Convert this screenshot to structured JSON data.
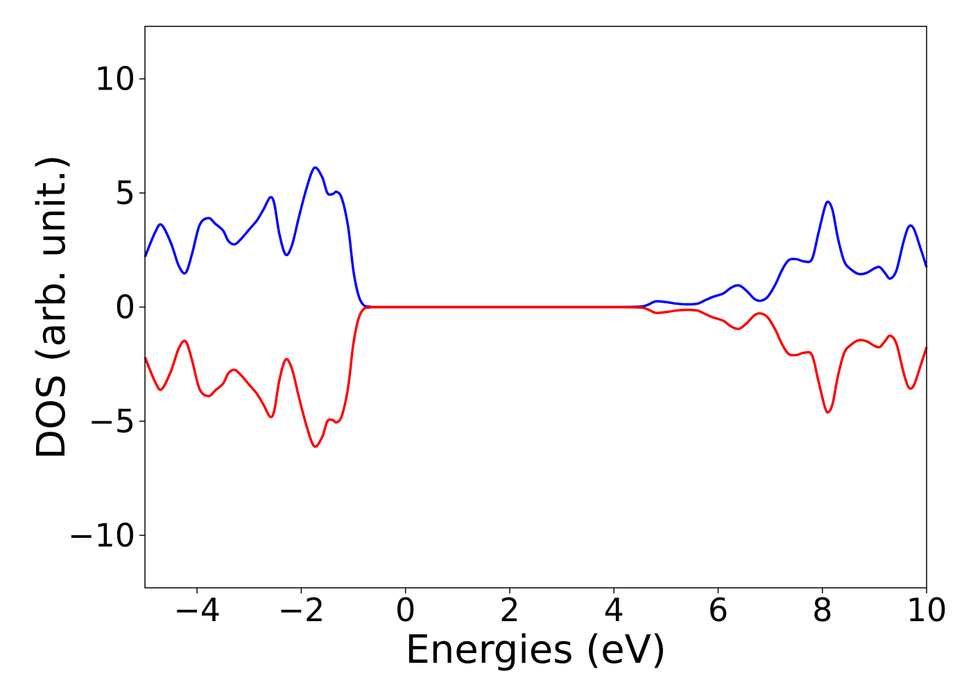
{
  "chart_data": {
    "type": "line",
    "title": "",
    "xlabel": "Energies (eV)",
    "ylabel": "DOS (arb. unit.)",
    "xlim": [
      -5,
      10
    ],
    "ylim": [
      -12.3,
      12.3
    ],
    "xticks": [
      -4,
      -2,
      0,
      2,
      4,
      6,
      8,
      10
    ],
    "yticks": [
      -10,
      -5,
      0,
      5,
      10
    ],
    "xtick_labels": [
      "−4",
      "−2",
      "0",
      "2",
      "4",
      "6",
      "8",
      "10"
    ],
    "ytick_labels": [
      "−10",
      "−5",
      "0",
      "5",
      "10"
    ],
    "grid": false,
    "legend": "none",
    "series": [
      {
        "color": "#0000ff",
        "x": [
          -5.0,
          -4.8,
          -4.68,
          -4.5,
          -4.35,
          -4.22,
          -4.1,
          -3.95,
          -3.78,
          -3.65,
          -3.5,
          -3.4,
          -3.28,
          -3.15,
          -3.0,
          -2.85,
          -2.72,
          -2.6,
          -2.52,
          -2.42,
          -2.3,
          -2.18,
          -2.05,
          -1.9,
          -1.75,
          -1.6,
          -1.5,
          -1.4,
          -1.32,
          -1.22,
          -1.1,
          -1.0,
          -0.9,
          -0.8,
          -0.7,
          -0.6,
          -0.5,
          0.0,
          2.0,
          4.0,
          4.5,
          4.65,
          4.8,
          5.0,
          5.2,
          5.4,
          5.6,
          5.75,
          5.9,
          6.1,
          6.25,
          6.4,
          6.55,
          6.7,
          6.82,
          6.95,
          7.1,
          7.22,
          7.35,
          7.5,
          7.65,
          7.8,
          7.92,
          8.05,
          8.12,
          8.2,
          8.3,
          8.42,
          8.55,
          8.7,
          8.85,
          9.0,
          9.1,
          9.2,
          9.3,
          9.42,
          9.55,
          9.65,
          9.75,
          9.88,
          10.0
        ],
        "y": [
          2.2,
          3.3,
          3.6,
          2.8,
          1.8,
          1.5,
          2.3,
          3.6,
          3.9,
          3.65,
          3.35,
          2.9,
          2.75,
          3.0,
          3.4,
          3.8,
          4.3,
          4.8,
          4.55,
          3.2,
          2.3,
          2.7,
          3.9,
          5.2,
          6.1,
          5.7,
          5.0,
          4.95,
          5.05,
          4.75,
          3.5,
          1.6,
          0.5,
          0.08,
          0.02,
          0.0,
          0.0,
          0.0,
          0.0,
          0.0,
          0.02,
          0.1,
          0.25,
          0.22,
          0.15,
          0.12,
          0.15,
          0.3,
          0.45,
          0.6,
          0.85,
          0.95,
          0.7,
          0.35,
          0.28,
          0.45,
          1.0,
          1.6,
          2.05,
          2.1,
          2.0,
          2.1,
          3.2,
          4.4,
          4.6,
          4.2,
          3.0,
          2.0,
          1.65,
          1.45,
          1.5,
          1.7,
          1.75,
          1.5,
          1.25,
          1.6,
          2.8,
          3.5,
          3.45,
          2.6,
          1.75
        ]
      },
      {
        "color": "#ff0000",
        "x": [
          -5.0,
          -4.8,
          -4.68,
          -4.5,
          -4.35,
          -4.22,
          -4.1,
          -3.95,
          -3.78,
          -3.65,
          -3.5,
          -3.4,
          -3.28,
          -3.15,
          -3.0,
          -2.85,
          -2.72,
          -2.6,
          -2.52,
          -2.42,
          -2.3,
          -2.18,
          -2.05,
          -1.9,
          -1.75,
          -1.6,
          -1.5,
          -1.4,
          -1.32,
          -1.22,
          -1.1,
          -1.0,
          -0.9,
          -0.8,
          -0.7,
          -0.6,
          -0.5,
          0.0,
          2.0,
          4.0,
          4.5,
          4.65,
          4.8,
          5.0,
          5.2,
          5.4,
          5.6,
          5.75,
          5.9,
          6.1,
          6.25,
          6.4,
          6.55,
          6.7,
          6.82,
          6.95,
          7.1,
          7.22,
          7.35,
          7.5,
          7.65,
          7.8,
          7.92,
          8.05,
          8.12,
          8.2,
          8.3,
          8.42,
          8.55,
          8.7,
          8.85,
          9.0,
          9.1,
          9.2,
          9.3,
          9.42,
          9.55,
          9.65,
          9.75,
          9.88,
          10.0
        ],
        "y": [
          -2.2,
          -3.3,
          -3.6,
          -2.8,
          -1.8,
          -1.5,
          -2.3,
          -3.6,
          -3.9,
          -3.65,
          -3.35,
          -2.9,
          -2.75,
          -3.0,
          -3.4,
          -3.8,
          -4.3,
          -4.8,
          -4.55,
          -3.2,
          -2.3,
          -2.7,
          -3.9,
          -5.2,
          -6.1,
          -5.7,
          -5.0,
          -4.95,
          -5.05,
          -4.75,
          -3.5,
          -1.6,
          -0.5,
          -0.08,
          -0.02,
          0.0,
          0.0,
          0.0,
          0.0,
          0.0,
          -0.02,
          -0.1,
          -0.25,
          -0.22,
          -0.15,
          -0.12,
          -0.15,
          -0.3,
          -0.45,
          -0.6,
          -0.85,
          -0.95,
          -0.7,
          -0.35,
          -0.28,
          -0.45,
          -1.0,
          -1.6,
          -2.05,
          -2.1,
          -2.0,
          -2.1,
          -3.2,
          -4.4,
          -4.6,
          -4.2,
          -3.0,
          -2.0,
          -1.65,
          -1.45,
          -1.5,
          -1.7,
          -1.75,
          -1.5,
          -1.25,
          -1.6,
          -2.8,
          -3.5,
          -3.45,
          -2.6,
          -1.75
        ]
      }
    ]
  }
}
